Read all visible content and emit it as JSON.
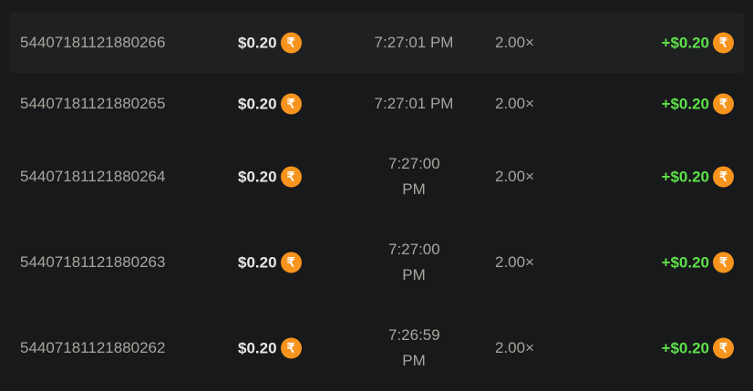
{
  "currency_icon": "rupee-coin-icon",
  "coin_color": "#f7941d",
  "coin_symbol": "₹",
  "profit_color": "#5ee04a",
  "rows": [
    {
      "id": "54407181121880266",
      "amount": "$0.20",
      "time": "7:27:01 PM",
      "multiplier": "2.00×",
      "profit": "+$0.20"
    },
    {
      "id": "54407181121880265",
      "amount": "$0.20",
      "time": "7:27:01 PM",
      "multiplier": "2.00×",
      "profit": "+$0.20"
    },
    {
      "id": "54407181121880264",
      "amount": "$0.20",
      "time": "7:27:00 PM",
      "multiplier": "2.00×",
      "profit": "+$0.20"
    },
    {
      "id": "54407181121880263",
      "amount": "$0.20",
      "time": "7:27:00 PM",
      "multiplier": "2.00×",
      "profit": "+$0.20"
    },
    {
      "id": "54407181121880262",
      "amount": "$0.20",
      "time": "7:26:59 PM",
      "multiplier": "2.00×",
      "profit": "+$0.20"
    }
  ]
}
